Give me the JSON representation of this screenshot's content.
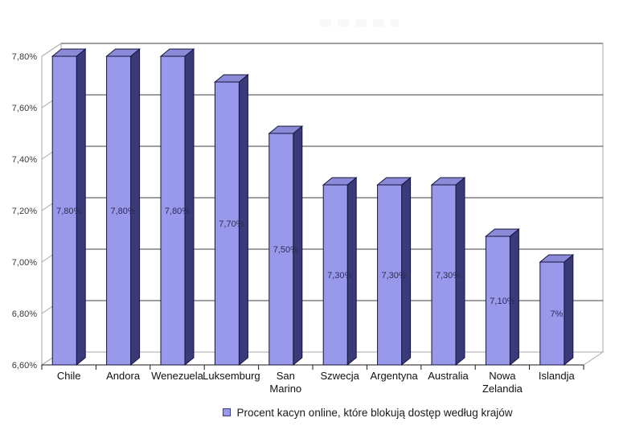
{
  "page": {
    "background": "#ffffff"
  },
  "legend": {
    "label": "Procent kacyn online, które blokują dostęp według krajów",
    "marker_color": "#9999ec",
    "marker_border": "#3c3c78"
  },
  "chart_data": {
    "type": "bar",
    "style": "3d-column",
    "title": "",
    "xlabel": "",
    "ylabel": "",
    "categories": [
      "Chile",
      "Andora",
      "Wenezuela",
      "Luksemburg",
      "San Marino",
      "Szwecja",
      "Argentyna",
      "Australia",
      "Nowa Zelandia",
      "Islandja"
    ],
    "values": [
      7.8,
      7.8,
      7.8,
      7.7,
      7.5,
      7.3,
      7.3,
      7.3,
      7.1,
      7.0
    ],
    "value_labels": [
      "7,80%",
      "7,80%",
      "7,80%",
      "7,70%",
      "7,50%",
      "7,30%",
      "7,30%",
      "7,30%",
      "7,10%",
      "7%"
    ],
    "ylim": [
      6.6,
      7.8
    ],
    "ytick_step": 0.2,
    "ytick_labels": [
      "6,60%",
      "6,80%",
      "7,00%",
      "7,20%",
      "7,40%",
      "7,60%",
      "7,80%"
    ],
    "grid": true,
    "legend_position": "bottom",
    "colors": {
      "bar_front": "#9999ec",
      "bar_top": "#8a8ad8",
      "bar_side": "#3a3a78",
      "bar_outline": "#14143c",
      "gridline": "#3f3f3f",
      "frame": "#a9a9a9",
      "axis_line": "#1a1a1a",
      "tick_label": "#3a3a3a",
      "category_label": "#111111",
      "value_label": "#2b2b55",
      "wall_fill": "#ffffff"
    }
  }
}
